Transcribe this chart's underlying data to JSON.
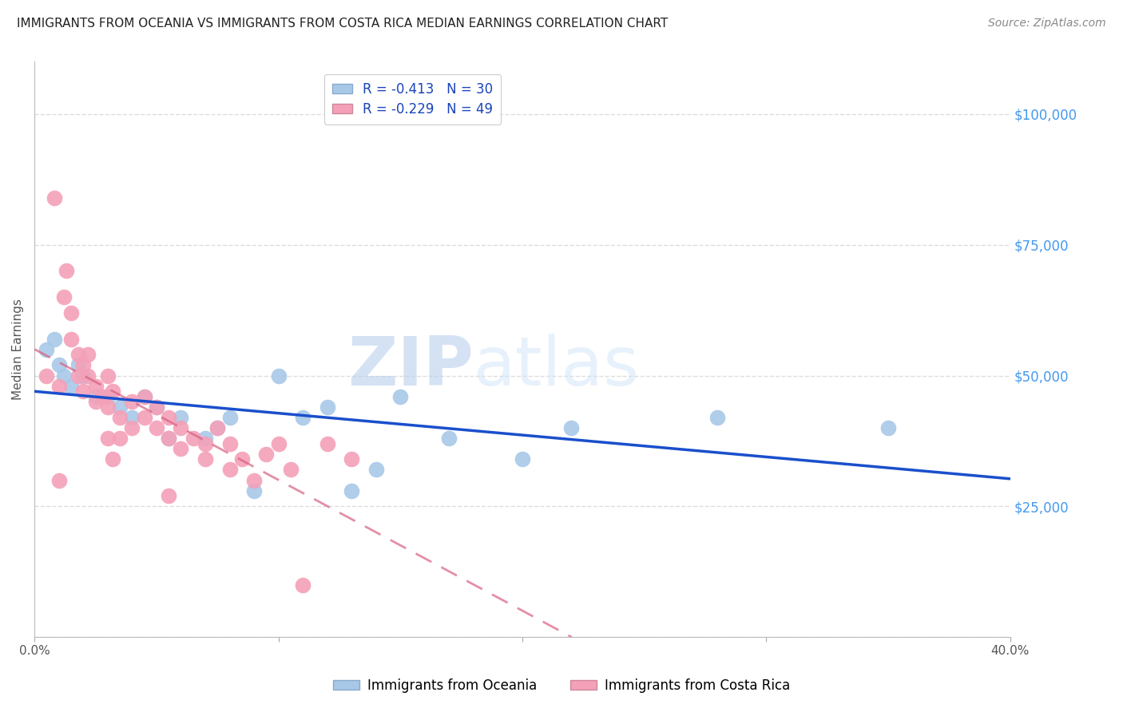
{
  "title": "IMMIGRANTS FROM OCEANIA VS IMMIGRANTS FROM COSTA RICA MEDIAN EARNINGS CORRELATION CHART",
  "source": "Source: ZipAtlas.com",
  "ylabel": "Median Earnings",
  "watermark_zip": "ZIP",
  "watermark_atlas": "atlas",
  "oceania": {
    "label": "Immigrants from Oceania",
    "R": -0.413,
    "N": 30,
    "color": "#a8c8e8",
    "line_color": "#1a4fcc",
    "x": [
      0.5,
      0.8,
      1.0,
      1.2,
      1.5,
      1.8,
      2.0,
      2.5,
      3.0,
      3.5,
      4.0,
      4.5,
      5.0,
      5.5,
      6.0,
      7.0,
      7.5,
      8.0,
      9.0,
      10.0,
      11.0,
      12.0,
      13.0,
      14.0,
      15.0,
      17.0,
      20.0,
      22.0,
      28.0,
      35.0
    ],
    "y": [
      55000,
      57000,
      52000,
      50000,
      48000,
      52000,
      50000,
      46000,
      46000,
      44000,
      42000,
      46000,
      44000,
      38000,
      42000,
      38000,
      40000,
      42000,
      28000,
      50000,
      42000,
      44000,
      28000,
      32000,
      46000,
      38000,
      34000,
      40000,
      42000,
      40000
    ]
  },
  "costa_rica": {
    "label": "Immigrants from Costa Rica",
    "R": -0.229,
    "N": 49,
    "color": "#f4a0b8",
    "line_color": "#d86080",
    "x": [
      0.5,
      0.8,
      1.0,
      1.2,
      1.3,
      1.5,
      1.5,
      1.8,
      1.8,
      2.0,
      2.0,
      2.2,
      2.2,
      2.5,
      2.5,
      2.8,
      3.0,
      3.0,
      3.2,
      3.5,
      3.5,
      4.0,
      4.0,
      4.5,
      4.5,
      5.0,
      5.0,
      5.5,
      5.5,
      6.0,
      6.0,
      6.5,
      7.0,
      7.0,
      7.5,
      8.0,
      8.0,
      8.5,
      9.0,
      9.5,
      10.0,
      10.5,
      11.0,
      12.0,
      13.0,
      1.0,
      3.0,
      3.2,
      5.5
    ],
    "y": [
      50000,
      84000,
      48000,
      65000,
      70000,
      57000,
      62000,
      54000,
      50000,
      52000,
      47000,
      54000,
      50000,
      48000,
      45000,
      46000,
      50000,
      44000,
      47000,
      42000,
      38000,
      45000,
      40000,
      46000,
      42000,
      44000,
      40000,
      42000,
      38000,
      40000,
      36000,
      38000,
      34000,
      37000,
      40000,
      32000,
      37000,
      34000,
      30000,
      35000,
      37000,
      32000,
      10000,
      37000,
      34000,
      30000,
      38000,
      34000,
      27000
    ]
  },
  "xlim": [
    0,
    40
  ],
  "ylim": [
    0,
    110000
  ],
  "yticks": [
    0,
    25000,
    50000,
    75000,
    100000
  ],
  "xticks": [
    0,
    10,
    20,
    30,
    40
  ],
  "grid_color": "#dddddd",
  "background_color": "#ffffff",
  "title_color": "#222222",
  "right_tick_color": "#4499ee",
  "title_fontsize": 11,
  "costa_rica_line_xlim": [
    0,
    40
  ]
}
